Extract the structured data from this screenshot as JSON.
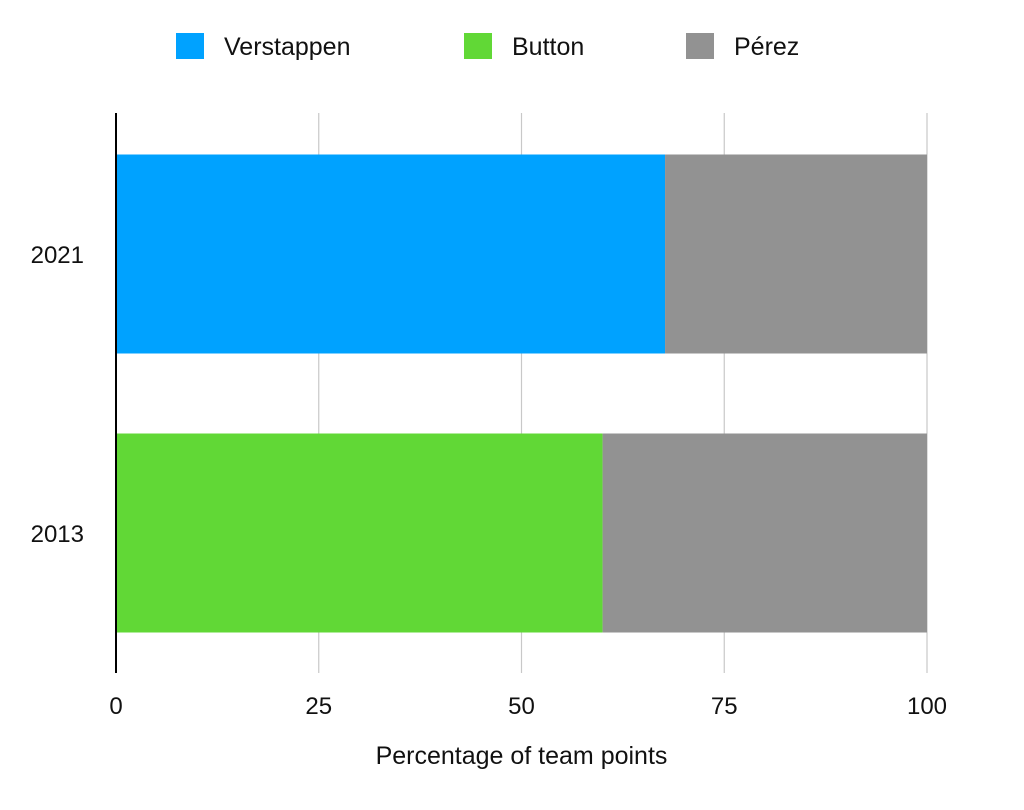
{
  "chart_data": {
    "type": "bar",
    "orientation": "horizontal",
    "stacked": true,
    "categories": [
      "2021",
      "2013"
    ],
    "series": [
      {
        "name": "Verstappen",
        "color": "#00A2FF",
        "values": [
          67.7,
          0
        ]
      },
      {
        "name": "Button",
        "color": "#61D836",
        "values": [
          0,
          60
        ]
      },
      {
        "name": "Pérez",
        "color": "#929292",
        "values": [
          32.3,
          40
        ]
      }
    ],
    "xlabel": "Percentage of team points",
    "ylabel": "",
    "xlim": [
      0,
      100
    ],
    "xticks": [
      "0",
      "25",
      "50",
      "75",
      "100"
    ],
    "grid": true,
    "legend_position": "top"
  }
}
